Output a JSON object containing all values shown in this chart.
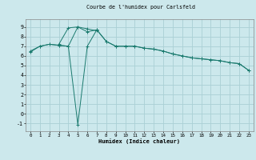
{
  "title": "Courbe de l'humidex pour Carlsfeld",
  "xlabel": "Humidex (Indice chaleur)",
  "bg_color": "#cce8ec",
  "grid_color": "#aad0d5",
  "line_color": "#1a7a6e",
  "xlim": [
    -0.5,
    23.5
  ],
  "ylim": [
    -1.8,
    9.8
  ],
  "xticks": [
    0,
    1,
    2,
    3,
    4,
    5,
    6,
    7,
    8,
    9,
    10,
    11,
    12,
    13,
    14,
    15,
    16,
    17,
    18,
    19,
    20,
    21,
    22,
    23
  ],
  "yticks": [
    -1,
    0,
    1,
    2,
    3,
    4,
    5,
    6,
    7,
    8,
    9
  ],
  "line1_x": [
    0,
    1,
    2,
    3,
    4,
    5,
    6,
    7,
    8,
    9,
    10,
    11,
    12,
    13,
    14,
    15,
    16,
    17,
    18,
    19,
    20,
    21,
    22,
    23
  ],
  "line1_y": [
    6.5,
    7.0,
    7.2,
    7.1,
    7.0,
    9.0,
    8.5,
    8.7,
    7.5,
    7.0,
    7.0,
    7.0,
    6.8,
    6.7,
    6.5,
    6.2,
    6.0,
    5.8,
    5.7,
    5.6,
    5.5,
    5.3,
    5.2,
    4.5
  ],
  "line2_x": [
    0,
    1,
    2,
    3,
    4,
    5,
    6,
    7,
    8,
    9,
    10,
    11,
    12,
    13,
    14,
    15,
    16,
    17,
    18,
    19,
    20,
    21,
    22,
    23
  ],
  "line2_y": [
    6.4,
    7.0,
    7.2,
    7.1,
    7.0,
    -1.1,
    7.0,
    8.7,
    7.5,
    7.0,
    7.0,
    7.0,
    6.8,
    6.7,
    6.5,
    6.2,
    6.0,
    5.8,
    5.7,
    5.6,
    5.5,
    5.3,
    5.2,
    4.5
  ],
  "line3_x": [
    3,
    4,
    5,
    6,
    7
  ],
  "line3_y": [
    7.2,
    8.9,
    9.0,
    8.8,
    8.6
  ]
}
